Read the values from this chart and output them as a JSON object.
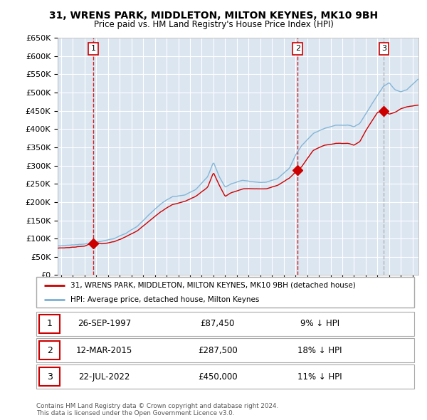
{
  "title": "31, WRENS PARK, MIDDLETON, MILTON KEYNES, MK10 9BH",
  "subtitle": "Price paid vs. HM Land Registry's House Price Index (HPI)",
  "ylim": [
    0,
    650000
  ],
  "yticks": [
    0,
    50000,
    100000,
    150000,
    200000,
    250000,
    300000,
    350000,
    400000,
    450000,
    500000,
    550000,
    600000,
    650000
  ],
  "xlim_start": 1994.7,
  "xlim_end": 2025.5,
  "background_color": "#ffffff",
  "plot_bg_color": "#dce6f1",
  "grid_color": "#ffffff",
  "sale_color": "#cc0000",
  "hpi_color": "#7ab0d4",
  "purchases": [
    {
      "date_num": 1997.73,
      "price": 87450,
      "label": "1"
    },
    {
      "date_num": 2015.19,
      "price": 287500,
      "label": "2"
    },
    {
      "date_num": 2022.55,
      "price": 450000,
      "label": "3"
    }
  ],
  "vline_colors": [
    "#cc0000",
    "#cc0000",
    "#aaaaaa"
  ],
  "vline_styles": [
    "--",
    "--",
    "--"
  ],
  "legend_entries": [
    "31, WRENS PARK, MIDDLETON, MILTON KEYNES, MK10 9BH (detached house)",
    "HPI: Average price, detached house, Milton Keynes"
  ],
  "table_rows": [
    {
      "num": "1",
      "date": "26-SEP-1997",
      "price": "£87,450",
      "hpi": "9% ↓ HPI"
    },
    {
      "num": "2",
      "date": "12-MAR-2015",
      "price": "£287,500",
      "hpi": "18% ↓ HPI"
    },
    {
      "num": "3",
      "date": "22-JUL-2022",
      "price": "£450,000",
      "hpi": "11% ↓ HPI"
    }
  ],
  "footnote": "Contains HM Land Registry data © Crown copyright and database right 2024.\nThis data is licensed under the Open Government Licence v3.0."
}
